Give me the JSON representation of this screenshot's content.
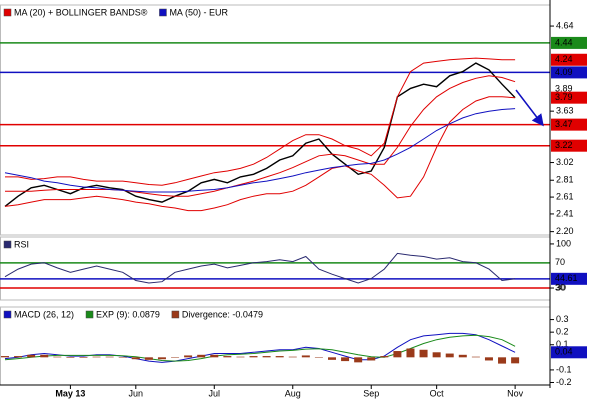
{
  "chart_data": [
    {
      "type": "line",
      "ylim": [
        2.16,
        4.89
      ],
      "yticks": [
        4.64,
        3.63,
        3.02,
        2.81,
        2.61,
        2.41,
        {
          "value": 2.2,
          "label": "2.20"
        }
      ],
      "levels": [
        {
          "value": 4.44,
          "color": "#1a8a1a",
          "line": true,
          "box": true
        },
        {
          "value": 4.24,
          "color": "#e00000",
          "line": false,
          "box": true
        },
        {
          "value": 4.09,
          "color": "#1010c0",
          "line": true,
          "box": true
        },
        {
          "value": 3.89,
          "color": "#000000",
          "line": false,
          "box": false
        },
        {
          "value": 3.79,
          "color": "#e00000",
          "line": false,
          "box": true
        },
        {
          "value": 3.47,
          "color": "#e00000",
          "line": true,
          "box": true
        },
        {
          "value": 3.22,
          "color": "#e00000",
          "line": true,
          "box": true
        }
      ],
      "series": [
        {
          "color": "#000000",
          "values": [
            2.5,
            2.62,
            2.72,
            2.75,
            2.7,
            2.65,
            2.72,
            2.75,
            2.72,
            2.7,
            2.62,
            2.58,
            2.55,
            2.62,
            2.68,
            2.78,
            2.82,
            2.78,
            2.85,
            2.88,
            2.95,
            3.05,
            3.1,
            3.25,
            3.3,
            3.12,
            3.0,
            2.88,
            2.92,
            3.2,
            3.8,
            3.9,
            3.95,
            3.92,
            4.05,
            4.1,
            4.2,
            4.12,
            3.95,
            3.79
          ]
        },
        {
          "name": "MA (20) + BOLLINGER BANDS®",
          "color": "#e00000",
          "values": [
            2.68,
            2.68,
            2.68,
            2.69,
            2.7,
            2.7,
            2.7,
            2.7,
            2.7,
            2.69,
            2.67,
            2.65,
            2.63,
            2.62,
            2.62,
            2.65,
            2.68,
            2.72,
            2.76,
            2.8,
            2.85,
            2.9,
            2.96,
            3.03,
            3.1,
            3.12,
            3.1,
            3.05,
            3.0,
            3.0,
            3.2,
            3.45,
            3.65,
            3.8,
            3.9,
            3.97,
            4.02,
            4.05,
            4.03,
            3.98
          ]
        },
        {
          "color": "#e00000",
          "values": [
            2.85,
            2.85,
            2.82,
            2.83,
            2.85,
            2.85,
            2.82,
            2.8,
            2.8,
            2.8,
            2.78,
            2.76,
            2.75,
            2.78,
            2.82,
            2.86,
            2.9,
            2.92,
            2.95,
            3.0,
            3.08,
            3.18,
            3.28,
            3.35,
            3.35,
            3.3,
            3.22,
            3.18,
            3.1,
            3.25,
            3.8,
            4.1,
            4.2,
            4.22,
            4.24,
            4.25,
            4.26,
            4.25,
            4.24,
            4.24
          ]
        },
        {
          "color": "#e00000",
          "values": [
            2.5,
            2.52,
            2.55,
            2.58,
            2.58,
            2.58,
            2.6,
            2.62,
            2.6,
            2.58,
            2.55,
            2.53,
            2.5,
            2.48,
            2.45,
            2.45,
            2.48,
            2.52,
            2.58,
            2.62,
            2.65,
            2.65,
            2.68,
            2.75,
            2.85,
            2.95,
            2.98,
            2.92,
            2.88,
            2.75,
            2.6,
            2.62,
            2.85,
            3.2,
            3.5,
            3.65,
            3.75,
            3.8,
            3.8,
            3.79
          ]
        },
        {
          "name": "MA (50) - EUR",
          "color": "#1010c0",
          "values": [
            2.9,
            2.87,
            2.84,
            2.8,
            2.78,
            2.75,
            2.73,
            2.72,
            2.7,
            2.69,
            2.68,
            2.67,
            2.67,
            2.67,
            2.68,
            2.69,
            2.7,
            2.72,
            2.75,
            2.78,
            2.8,
            2.83,
            2.86,
            2.9,
            2.93,
            2.96,
            2.98,
            3.0,
            3.01,
            3.05,
            3.12,
            3.2,
            3.3,
            3.4,
            3.48,
            3.55,
            3.6,
            3.63,
            3.65,
            3.66
          ]
        }
      ]
    },
    {
      "type": "line",
      "ylim": [
        11,
        111
      ],
      "yticks": [
        100,
        30
      ],
      "levels": [
        {
          "value": 70,
          "color": "#1a8a1a",
          "line": true,
          "box": false
        },
        {
          "value": 44.61,
          "color": "#1010c0",
          "line": true,
          "box": true
        },
        {
          "value": 30,
          "color": "#e00000",
          "line": true,
          "box": false
        }
      ],
      "series": [
        {
          "name": "RSI",
          "color": "#2a2a70",
          "values": [
            48,
            60,
            68,
            70,
            62,
            55,
            60,
            65,
            60,
            55,
            42,
            38,
            40,
            55,
            60,
            65,
            68,
            62,
            66,
            70,
            72,
            75,
            72,
            80,
            60,
            52,
            45,
            38,
            45,
            60,
            85,
            82,
            80,
            76,
            78,
            72,
            70,
            60,
            42,
            44.61
          ]
        }
      ]
    },
    {
      "type": "line",
      "ylim": [
        -0.22,
        0.4
      ],
      "yticks": [
        0.3,
        0.2,
        0.1,
        -0.1,
        -0.2
      ],
      "levels": [
        {
          "value": 0.04,
          "color": "#1010c0",
          "line": false,
          "box": true
        }
      ],
      "categories": [
        null,
        null,
        null,
        null,
        null,
        "May 13",
        null,
        null,
        null,
        null,
        "Jun",
        null,
        null,
        null,
        null,
        null,
        "Jul",
        null,
        null,
        null,
        null,
        null,
        "Aug",
        null,
        null,
        null,
        null,
        null,
        "Sep",
        null,
        null,
        null,
        null,
        "Oct",
        null,
        null,
        null,
        null,
        null,
        "Nov"
      ],
      "series": [
        {
          "name": "MACD (26, 12)",
          "color": "#1010c0",
          "values": [
            -0.01,
            0.0,
            0.02,
            0.03,
            0.02,
            0.01,
            0.01,
            0.02,
            0.02,
            0.01,
            -0.01,
            -0.03,
            -0.04,
            -0.03,
            -0.01,
            0.01,
            0.03,
            0.03,
            0.03,
            0.04,
            0.05,
            0.06,
            0.06,
            0.08,
            0.07,
            0.04,
            0.01,
            -0.02,
            -0.02,
            0.01,
            0.08,
            0.14,
            0.17,
            0.18,
            0.19,
            0.19,
            0.18,
            0.14,
            0.09,
            0.04
          ]
        },
        {
          "name": "EXP (9): 0.0879",
          "color": "#1a8a1a",
          "values": [
            -0.02,
            -0.01,
            0.0,
            0.01,
            0.015,
            0.015,
            0.015,
            0.015,
            0.015,
            0.012,
            0.005,
            -0.01,
            -0.025,
            -0.03,
            -0.025,
            -0.01,
            0.01,
            0.02,
            0.025,
            0.03,
            0.04,
            0.05,
            0.055,
            0.065,
            0.068,
            0.06,
            0.04,
            0.02,
            0.005,
            0.0,
            0.03,
            0.07,
            0.11,
            0.14,
            0.16,
            0.17,
            0.175,
            0.165,
            0.14,
            0.0879
          ]
        },
        {
          "name": "Divergence: -0.0479",
          "color": "#9a3a1a",
          "type": "bar",
          "values": [
            0.01,
            0.01,
            0.02,
            0.02,
            0.005,
            -0.005,
            -0.005,
            0.005,
            0.005,
            -0.002,
            -0.015,
            -0.02,
            -0.015,
            0.0,
            0.015,
            0.02,
            0.02,
            0.01,
            0.005,
            0.01,
            0.01,
            0.01,
            0.005,
            0.015,
            0.002,
            -0.02,
            -0.03,
            -0.04,
            -0.025,
            0.01,
            0.05,
            0.07,
            0.06,
            0.04,
            0.03,
            0.02,
            0.005,
            -0.025,
            -0.05,
            -0.0479
          ]
        }
      ]
    }
  ]
}
